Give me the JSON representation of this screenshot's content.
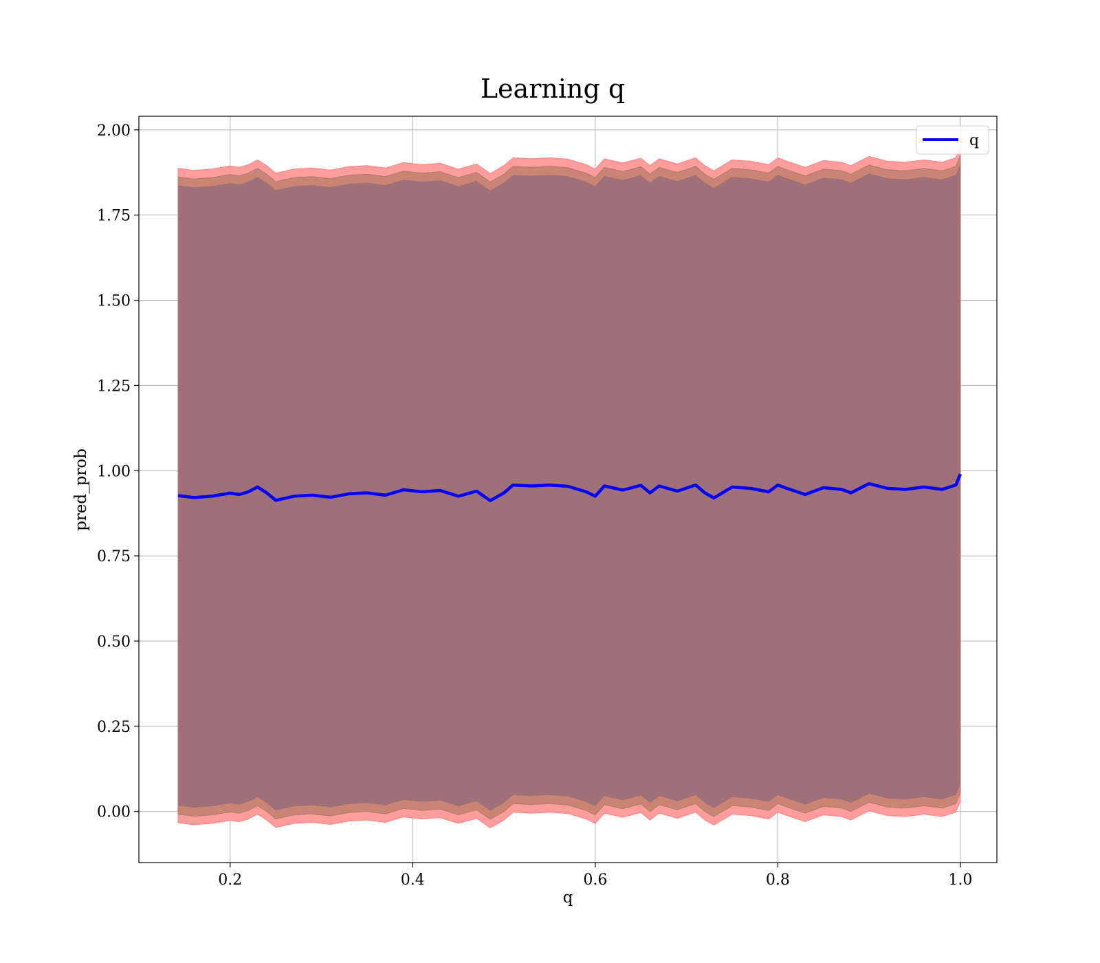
{
  "chart_data": {
    "type": "area",
    "title": "Learning q",
    "xlabel": "q",
    "ylabel": "pred_prob",
    "xlim": [
      0.1,
      1.04
    ],
    "ylim": [
      -0.15,
      2.04
    ],
    "xticks": [
      0.2,
      0.4,
      0.6,
      0.8,
      1.0
    ],
    "xtick_labels": [
      "0.2",
      "0.4",
      "0.6",
      "0.8",
      "1.0"
    ],
    "yticks": [
      0.0,
      0.25,
      0.5,
      0.75,
      1.0,
      1.25,
      1.5,
      1.75,
      2.0
    ],
    "ytick_labels": [
      "0.00",
      "0.25",
      "0.50",
      "0.75",
      "1.00",
      "1.25",
      "1.50",
      "1.75",
      "2.00"
    ],
    "grid": true,
    "legend": {
      "placement": "top-right",
      "entries": [
        "q"
      ]
    },
    "colors": {
      "line": "#0000ff",
      "band_outer": "#ff9c9c",
      "band_mid": "#c98474",
      "band_inner": "#a07078"
    },
    "x": [
      0.143,
      0.16,
      0.18,
      0.2,
      0.21,
      0.22,
      0.23,
      0.24,
      0.25,
      0.27,
      0.29,
      0.31,
      0.33,
      0.35,
      0.37,
      0.39,
      0.41,
      0.43,
      0.45,
      0.47,
      0.485,
      0.5,
      0.51,
      0.53,
      0.55,
      0.57,
      0.59,
      0.6,
      0.61,
      0.63,
      0.65,
      0.66,
      0.67,
      0.69,
      0.71,
      0.72,
      0.73,
      0.75,
      0.77,
      0.79,
      0.8,
      0.81,
      0.83,
      0.85,
      0.87,
      0.88,
      0.9,
      0.92,
      0.94,
      0.96,
      0.98,
      0.995,
      1.0
    ],
    "series": [
      {
        "name": "q",
        "values": [
          0.927,
          0.921,
          0.925,
          0.934,
          0.93,
          0.938,
          0.952,
          0.935,
          0.913,
          0.925,
          0.928,
          0.922,
          0.932,
          0.935,
          0.928,
          0.944,
          0.938,
          0.942,
          0.925,
          0.94,
          0.912,
          0.935,
          0.958,
          0.955,
          0.958,
          0.954,
          0.938,
          0.925,
          0.955,
          0.943,
          0.957,
          0.935,
          0.955,
          0.94,
          0.958,
          0.935,
          0.92,
          0.952,
          0.948,
          0.938,
          0.958,
          0.948,
          0.93,
          0.95,
          0.945,
          0.935,
          0.962,
          0.948,
          0.945,
          0.952,
          0.945,
          0.958,
          0.99
        ]
      }
    ],
    "band_half_widths": {
      "inner": 0.91,
      "mid": 0.935,
      "outer": 0.96
    }
  }
}
